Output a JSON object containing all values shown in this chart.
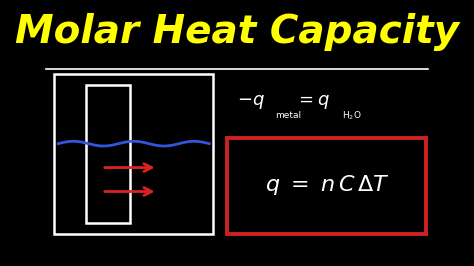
{
  "background_color": "#000000",
  "title": "Molar Heat Capacity",
  "title_color": "#FFFF00",
  "title_fontsize": 28,
  "title_style": "italic",
  "separator_color": "#FFFFFF",
  "eq2_box_color": "#CC2222",
  "eq_text_color": "#FFFFFF",
  "arrow_color": "#DD2222",
  "blue_color": "#3355DD",
  "white_color": "#FFFFFF"
}
